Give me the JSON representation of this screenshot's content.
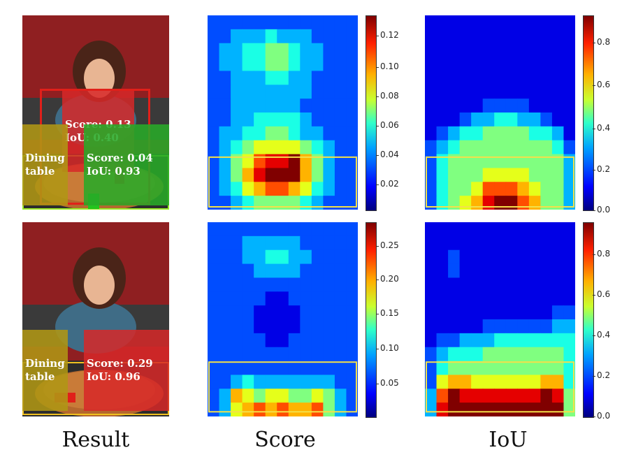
{
  "columns": [
    "Result",
    "Score",
    "IoU"
  ],
  "rows": [
    {
      "labels": {
        "person": {
          "line1": "Score: 0.13",
          "line2": "IoU: 0.40"
        },
        "table_class": {
          "line1": "Dining",
          "line2": "table"
        },
        "table_score": {
          "line1": "Score: 0.04",
          "line2": "IoU: 0.93"
        }
      },
      "score_ticks": [
        "0.12",
        "0.10",
        "0.08",
        "0.06",
        "0.04",
        "0.02"
      ],
      "iou_ticks": [
        "0.8",
        "0.6",
        "0.4",
        "0.2",
        "0.0"
      ]
    },
    {
      "labels": {
        "table_class": {
          "line1": "Dining",
          "line2": "table"
        },
        "table_score": {
          "line1": "Score: 0.29",
          "line2": "IoU: 0.96"
        }
      },
      "score_ticks": [
        "0.25",
        "0.20",
        "0.15",
        "0.10",
        "0.05"
      ],
      "iou_ticks": [
        "0.8",
        "0.6",
        "0.4",
        "0.2",
        "0.0"
      ]
    }
  ],
  "chart_data": [
    {
      "type": "heatmap",
      "name": "Score",
      "row": 1,
      "colorbar_range": [
        0.0,
        0.135
      ],
      "grid": [
        [
          1,
          1,
          1,
          1,
          1,
          1,
          1,
          1,
          1,
          1,
          1,
          1,
          1
        ],
        [
          1,
          1,
          2,
          2,
          2,
          3,
          2,
          2,
          2,
          1,
          1,
          1,
          1
        ],
        [
          1,
          2,
          2,
          3,
          3,
          4,
          4,
          3,
          2,
          2,
          1,
          1,
          1
        ],
        [
          1,
          2,
          2,
          3,
          3,
          4,
          4,
          3,
          2,
          2,
          1,
          1,
          1
        ],
        [
          1,
          1,
          2,
          2,
          2,
          3,
          3,
          2,
          2,
          1,
          1,
          1,
          1
        ],
        [
          1,
          1,
          2,
          2,
          2,
          2,
          2,
          2,
          2,
          1,
          1,
          1,
          1
        ],
        [
          1,
          1,
          2,
          2,
          2,
          2,
          2,
          2,
          1,
          1,
          1,
          1,
          1
        ],
        [
          1,
          1,
          2,
          2,
          3,
          3,
          3,
          3,
          2,
          1,
          1,
          1,
          1
        ],
        [
          1,
          2,
          2,
          3,
          3,
          4,
          4,
          3,
          2,
          2,
          1,
          1,
          1
        ],
        [
          1,
          2,
          3,
          4,
          5,
          5,
          5,
          5,
          4,
          3,
          2,
          1,
          1
        ],
        [
          1,
          2,
          4,
          5,
          7,
          8,
          8,
          9,
          6,
          4,
          2,
          1,
          1
        ],
        [
          1,
          2,
          4,
          6,
          8,
          9,
          9,
          9,
          6,
          4,
          2,
          1,
          1
        ],
        [
          1,
          2,
          3,
          5,
          6,
          7,
          7,
          6,
          5,
          3,
          2,
          1,
          1
        ],
        [
          1,
          1,
          2,
          3,
          4,
          4,
          4,
          4,
          3,
          2,
          1,
          1,
          1
        ]
      ]
    },
    {
      "type": "heatmap",
      "name": "IoU",
      "row": 1,
      "colorbar_range": [
        0.0,
        0.9
      ],
      "grid": [
        [
          0,
          0,
          0,
          0,
          0,
          0,
          0,
          0,
          0,
          0,
          0,
          0,
          0
        ],
        [
          0,
          0,
          0,
          0,
          0,
          0,
          0,
          0,
          0,
          0,
          0,
          0,
          0
        ],
        [
          0,
          0,
          0,
          0,
          0,
          0,
          0,
          0,
          0,
          0,
          0,
          0,
          0
        ],
        [
          0,
          0,
          0,
          0,
          0,
          0,
          0,
          0,
          0,
          0,
          0,
          0,
          0
        ],
        [
          0,
          0,
          0,
          0,
          0,
          0,
          0,
          0,
          0,
          0,
          0,
          0,
          0
        ],
        [
          0,
          0,
          0,
          0,
          0,
          0,
          0,
          0,
          0,
          0,
          0,
          0,
          0
        ],
        [
          0,
          0,
          0,
          0,
          0,
          1,
          1,
          1,
          1,
          0,
          0,
          0,
          0
        ],
        [
          0,
          0,
          0,
          1,
          2,
          2,
          3,
          3,
          2,
          2,
          1,
          0,
          0
        ],
        [
          0,
          1,
          2,
          3,
          3,
          4,
          4,
          4,
          4,
          3,
          3,
          2,
          0
        ],
        [
          1,
          2,
          3,
          4,
          4,
          4,
          4,
          4,
          4,
          4,
          4,
          3,
          1
        ],
        [
          1,
          3,
          4,
          4,
          4,
          4,
          4,
          4,
          4,
          4,
          4,
          4,
          2
        ],
        [
          1,
          3,
          4,
          4,
          4,
          5,
          5,
          5,
          5,
          4,
          4,
          4,
          2
        ],
        [
          1,
          3,
          4,
          4,
          5,
          7,
          7,
          7,
          6,
          5,
          4,
          4,
          2
        ],
        [
          1,
          3,
          4,
          5,
          6,
          8,
          9,
          9,
          7,
          6,
          4,
          4,
          2
        ]
      ]
    },
    {
      "type": "heatmap",
      "name": "Score",
      "row": 2,
      "colorbar_range": [
        0.0,
        0.28
      ],
      "grid": [
        [
          1,
          1,
          1,
          1,
          1,
          1,
          1,
          1,
          1,
          1,
          1,
          1,
          1
        ],
        [
          1,
          1,
          1,
          2,
          2,
          2,
          2,
          2,
          1,
          1,
          1,
          1,
          1
        ],
        [
          1,
          1,
          1,
          2,
          2,
          3,
          3,
          2,
          2,
          1,
          1,
          1,
          1
        ],
        [
          1,
          1,
          1,
          1,
          2,
          2,
          2,
          2,
          1,
          1,
          1,
          1,
          1
        ],
        [
          1,
          1,
          1,
          1,
          1,
          1,
          1,
          1,
          1,
          1,
          1,
          1,
          1
        ],
        [
          1,
          1,
          1,
          1,
          1,
          0,
          0,
          1,
          1,
          1,
          1,
          1,
          1
        ],
        [
          1,
          1,
          1,
          1,
          0,
          0,
          0,
          0,
          1,
          1,
          1,
          1,
          1
        ],
        [
          1,
          1,
          1,
          1,
          0,
          0,
          0,
          0,
          1,
          1,
          1,
          1,
          1
        ],
        [
          1,
          1,
          1,
          1,
          1,
          0,
          0,
          1,
          1,
          1,
          1,
          1,
          1
        ],
        [
          1,
          1,
          1,
          1,
          1,
          1,
          1,
          1,
          1,
          1,
          1,
          1,
          1
        ],
        [
          1,
          1,
          1,
          1,
          1,
          1,
          1,
          1,
          1,
          1,
          1,
          1,
          1
        ],
        [
          1,
          1,
          2,
          3,
          2,
          2,
          2,
          2,
          2,
          2,
          2,
          1,
          1
        ],
        [
          1,
          2,
          6,
          5,
          4,
          5,
          5,
          4,
          4,
          5,
          4,
          2,
          1
        ],
        [
          1,
          2,
          5,
          6,
          7,
          6,
          7,
          6,
          6,
          7,
          4,
          2,
          1
        ]
      ]
    },
    {
      "type": "heatmap",
      "name": "IoU",
      "row": 2,
      "colorbar_range": [
        0.0,
        0.95
      ],
      "grid": [
        [
          0,
          0,
          0,
          0,
          0,
          0,
          0,
          0,
          0,
          0,
          0,
          0,
          0
        ],
        [
          0,
          0,
          0,
          0,
          0,
          0,
          0,
          0,
          0,
          0,
          0,
          0,
          0
        ],
        [
          0,
          0,
          1,
          0,
          0,
          0,
          0,
          0,
          0,
          0,
          0,
          0,
          0
        ],
        [
          0,
          0,
          1,
          0,
          0,
          0,
          0,
          0,
          0,
          0,
          0,
          0,
          0
        ],
        [
          0,
          0,
          0,
          0,
          0,
          0,
          0,
          0,
          0,
          0,
          0,
          0,
          0
        ],
        [
          0,
          0,
          0,
          0,
          0,
          0,
          0,
          0,
          0,
          0,
          0,
          0,
          0
        ],
        [
          0,
          0,
          0,
          0,
          0,
          0,
          0,
          0,
          0,
          0,
          0,
          1,
          1
        ],
        [
          0,
          0,
          0,
          0,
          0,
          1,
          1,
          1,
          1,
          1,
          1,
          2,
          2
        ],
        [
          0,
          1,
          1,
          2,
          2,
          2,
          3,
          3,
          3,
          3,
          3,
          3,
          3
        ],
        [
          1,
          2,
          3,
          3,
          3,
          4,
          4,
          4,
          4,
          4,
          4,
          4,
          3
        ],
        [
          1,
          3,
          4,
          4,
          4,
          4,
          4,
          4,
          4,
          4,
          4,
          4,
          3
        ],
        [
          1,
          5,
          6,
          6,
          5,
          5,
          5,
          5,
          5,
          5,
          6,
          6,
          3
        ],
        [
          2,
          7,
          9,
          8,
          8,
          8,
          8,
          8,
          8,
          8,
          9,
          8,
          4
        ],
        [
          2,
          8,
          9,
          9,
          9,
          9,
          9,
          9,
          9,
          9,
          9,
          9,
          4
        ]
      ]
    }
  ]
}
